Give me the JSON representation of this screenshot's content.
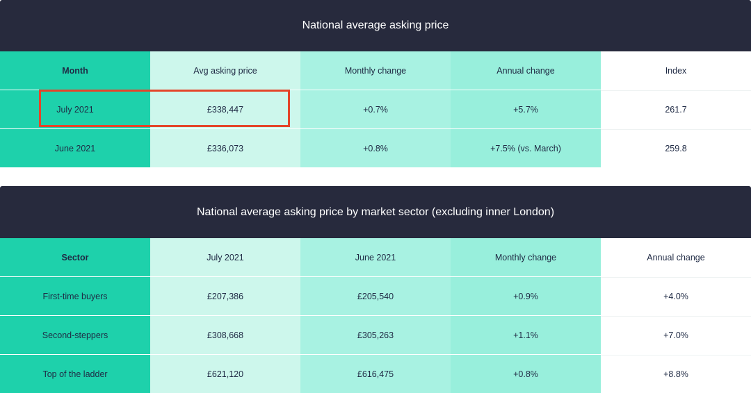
{
  "table1": {
    "title": "National average asking price",
    "headers": [
      "Month",
      "Avg asking price",
      "Monthly change",
      "Annual change",
      "Index"
    ],
    "rows": [
      [
        "July 2021",
        "£338,447",
        "+0.7%",
        "+5.7%",
        "261.7"
      ],
      [
        "June 2021",
        "£336,073",
        "+0.8%",
        "+7.5% (vs. March)",
        "259.8"
      ]
    ]
  },
  "table2": {
    "title": "National average asking price by market sector (excluding inner London)",
    "headers": [
      "Sector",
      "July 2021",
      "June 2021",
      "Monthly change",
      "Annual change"
    ],
    "rows": [
      [
        "First-time buyers",
        "£207,386",
        "£205,540",
        "+0.9%",
        "+4.0%"
      ],
      [
        "Second-steppers",
        "£308,668",
        "£305,263",
        "+1.1%",
        "+7.0%"
      ],
      [
        "Top of the ladder",
        "£621,120",
        "£616,475",
        "+0.8%",
        "+8.8%"
      ]
    ]
  },
  "colors": {
    "title_bar": "#272a3d",
    "col1": "#1ed1ab",
    "col2": "#cdf7ec",
    "col3": "#a8f2e2",
    "col4": "#98efdc",
    "col5": "#ffffff",
    "highlight": "#e4452a"
  }
}
